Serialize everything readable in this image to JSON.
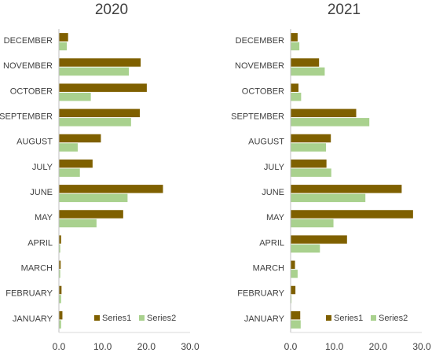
{
  "chart_data": [
    {
      "type": "bar",
      "orientation": "horizontal",
      "title": "2020",
      "categories": [
        "JANUARY",
        "FEBRUARY",
        "MARCH",
        "APRIL",
        "MAY",
        "JUNE",
        "JULY",
        "AUGUST",
        "SEPTEMBER",
        "OCTOBER",
        "NOVEMBER",
        "DECEMBER"
      ],
      "series": [
        {
          "name": "Series1",
          "color": "#7f6000",
          "values": [
            0.8,
            0.6,
            0.4,
            0.5,
            14.7,
            23.8,
            7.7,
            9.6,
            18.5,
            20.1,
            18.7,
            2.1
          ]
        },
        {
          "name": "Series2",
          "color": "#a9d18e",
          "values": [
            0.5,
            0.5,
            0.3,
            0.3,
            8.6,
            15.7,
            4.8,
            4.3,
            16.5,
            7.3,
            16.0,
            1.8
          ]
        }
      ],
      "xlim": [
        0,
        30
      ],
      "xticks": [
        "0.0",
        "10.0",
        "20.0",
        "30.0"
      ],
      "legend_position": "bottom-right",
      "grid": false
    },
    {
      "type": "bar",
      "orientation": "horizontal",
      "title": "2021",
      "categories": [
        "JANUARY",
        "FEBRUARY",
        "MARCH",
        "APRIL",
        "MAY",
        "JUNE",
        "JULY",
        "AUGUST",
        "SEPTEMBER",
        "OCTOBER",
        "NOVEMBER",
        "DECEMBER"
      ],
      "series": [
        {
          "name": "Series1",
          "color": "#7f6000",
          "values": [
            2.2,
            1.1,
            1.0,
            12.9,
            28.0,
            25.4,
            8.2,
            9.2,
            15.0,
            1.8,
            6.5,
            1.6
          ]
        },
        {
          "name": "Series2",
          "color": "#a9d18e",
          "values": [
            2.3,
            0.2,
            1.6,
            6.7,
            9.8,
            17.1,
            9.3,
            8.1,
            18.0,
            2.4,
            7.8,
            2.0
          ]
        }
      ],
      "xlim": [
        0,
        30
      ],
      "xticks": [
        "0.0",
        "10.0",
        "20.0",
        "30.0"
      ],
      "legend_position": "bottom-right",
      "grid": false
    }
  ]
}
